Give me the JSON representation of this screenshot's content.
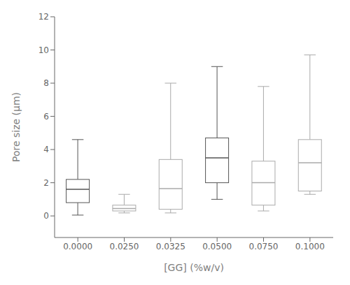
{
  "chart_data": {
    "type": "box",
    "categories": [
      "0.0000",
      "0.0250",
      "0.0325",
      "0.0500",
      "0.0750",
      "0.1000"
    ],
    "boxes": [
      {
        "whislo": 0.05,
        "q1": 0.8,
        "med": 1.6,
        "q3": 2.2,
        "whishi": 4.6
      },
      {
        "whislo": 0.18,
        "q1": 0.3,
        "med": 0.45,
        "q3": 0.65,
        "whishi": 1.3
      },
      {
        "whislo": 0.18,
        "q1": 0.4,
        "med": 1.65,
        "q3": 3.4,
        "whishi": 8.0
      },
      {
        "whislo": 1.0,
        "q1": 2.0,
        "med": 3.5,
        "q3": 4.7,
        "whishi": 9.0
      },
      {
        "whislo": 0.3,
        "q1": 0.65,
        "med": 2.0,
        "q3": 3.3,
        "whishi": 7.8
      },
      {
        "whislo": 1.3,
        "q1": 1.5,
        "med": 3.2,
        "q3": 4.6,
        "whishi": 9.7
      }
    ],
    "colors": [
      "#555555",
      "#aaaaaa",
      "#aaaaaa",
      "#555555",
      "#aaaaaa",
      "#aaaaaa"
    ],
    "ylabel": "Pore size (μm)",
    "xlabel": "[GG] (%w/v)",
    "ylim": [
      -1.3,
      12
    ],
    "yticks": [
      0,
      2,
      4,
      6,
      8,
      10,
      12
    ],
    "grid": false
  }
}
